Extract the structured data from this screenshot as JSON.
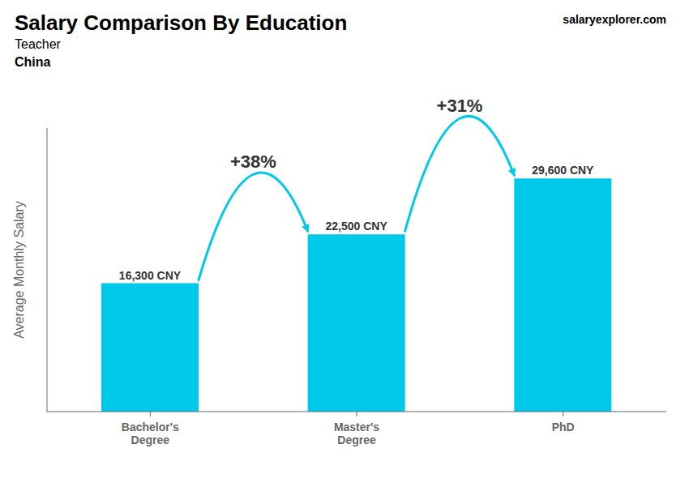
{
  "chart_data": {
    "type": "bar",
    "title": "Salary Comparison By Education",
    "subtitle": [
      "Teacher",
      "China"
    ],
    "y_label": "Average Monthly Salary",
    "categories": [
      "Bachelor's\nDegree",
      "Master's\nDegree",
      "PhD"
    ],
    "values": [
      16300,
      22500,
      29600
    ],
    "value_labels": [
      "16,300 CNY",
      "22,500 CNY",
      "29,600 CNY"
    ],
    "data_labels": true,
    "color": "#00c8e8",
    "ylim": [
      0,
      36000
    ],
    "grid": false,
    "tick_labels": "x",
    "annotations": [
      "+38%",
      "+31%",
      "salaryexplorer.com"
    ]
  }
}
